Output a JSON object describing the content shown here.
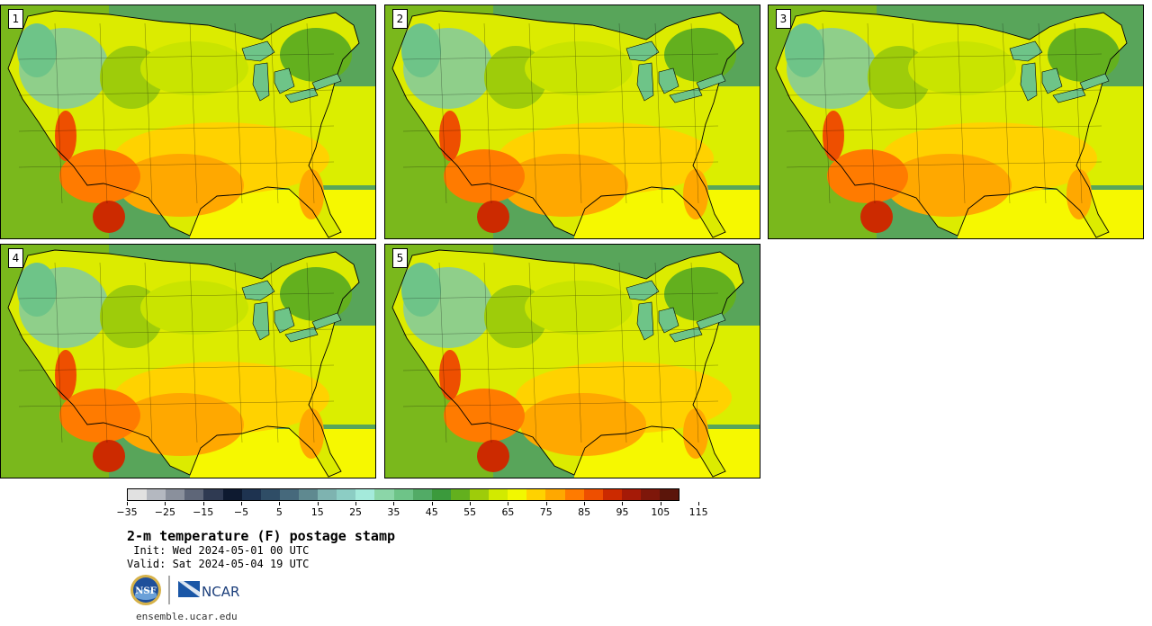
{
  "panels": [
    {
      "label": "1"
    },
    {
      "label": "2"
    },
    {
      "label": "3"
    },
    {
      "label": "4"
    },
    {
      "label": "5"
    }
  ],
  "colorbar": {
    "colors": [
      "#e1e1e1",
      "#b4b8c0",
      "#8a909c",
      "#5e6678",
      "#2f3a52",
      "#0e1a30",
      "#1e3350",
      "#2f4d66",
      "#46697c",
      "#5f8990",
      "#7eb3b0",
      "#8ccdc4",
      "#a4eadb",
      "#8bd6a8",
      "#6ec488",
      "#52ab66",
      "#3b9a3c",
      "#63b01e",
      "#9ecc0a",
      "#d2ea00",
      "#f2f800",
      "#ffd200",
      "#ffa800",
      "#ff7b00",
      "#ee4f00",
      "#cc2a00",
      "#a51a07",
      "#7e170a",
      "#5b150a"
    ],
    "tick_labels": [
      "−35",
      "−25",
      "−15",
      "−5",
      "5",
      "15",
      "25",
      "35",
      "45",
      "55",
      "65",
      "75",
      "85",
      "95",
      "105",
      "115"
    ]
  },
  "title": "2-m temperature (F) postage stamp",
  "init": " Init: Wed 2024-05-01 00 UTC",
  "valid": "Valid: Sat 2024-05-04 19 UTC",
  "logos": {
    "nsf": "NSF",
    "ncar": "NCAR"
  },
  "footer": "ensemble.ucar.edu"
}
